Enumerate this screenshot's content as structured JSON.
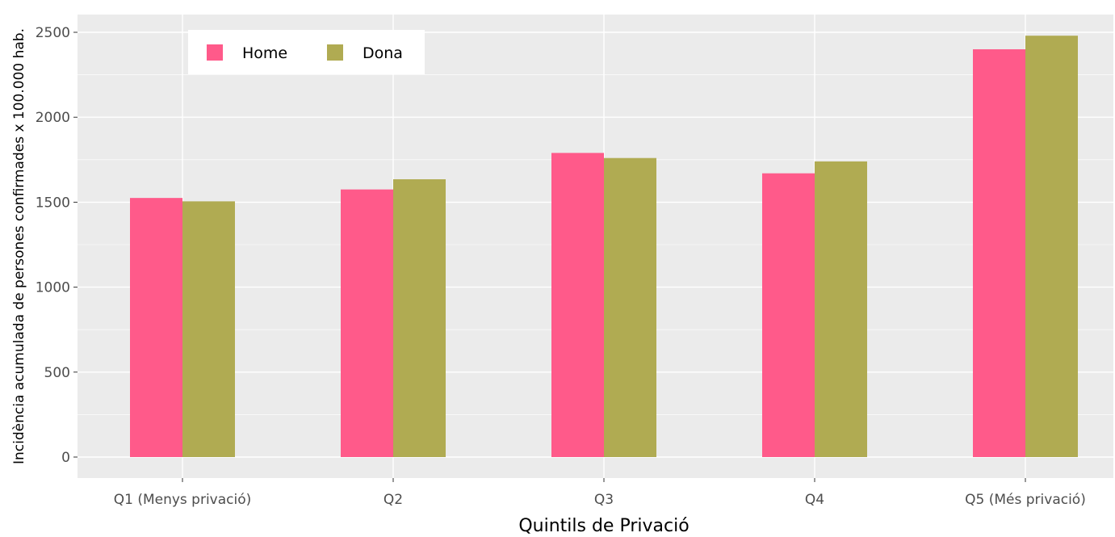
{
  "chart_data": {
    "type": "bar",
    "title": "",
    "xlabel": "Quintils de Privació",
    "ylabel": "Incidència acumulada de persones confirmades x 100.000 hab.",
    "categories": [
      "Q1 (Menys privació)",
      "Q2",
      "Q3",
      "Q4",
      "Q5 (Més privació)"
    ],
    "series": [
      {
        "name": "Home",
        "color": "#ff5a8a",
        "values": [
          1525,
          1575,
          1790,
          1670,
          2400
        ]
      },
      {
        "name": "Dona",
        "color": "#b0ab52",
        "values": [
          1505,
          1635,
          1760,
          1740,
          2480
        ]
      }
    ],
    "ylim": [
      0,
      2600
    ],
    "yticks": [
      0,
      500,
      1000,
      1500,
      2000,
      2500
    ],
    "grid": true,
    "legend_position": "top-left",
    "panel_background": "#ebebeb",
    "grid_color": "#ffffff"
  }
}
